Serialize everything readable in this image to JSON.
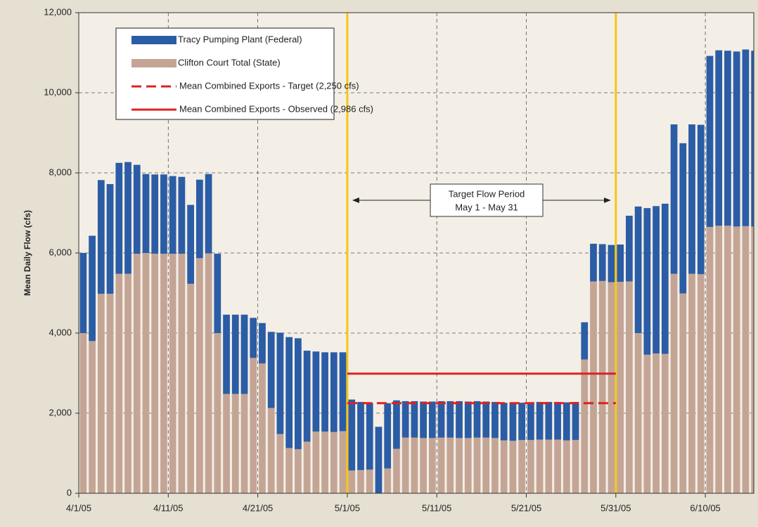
{
  "chart_data": {
    "type": "stacked_bar",
    "y_label": "Mean Daily Flow (cfs)",
    "ylim": [
      0,
      12000
    ],
    "yticks": [
      0,
      {
        "value": 2000,
        "label": "2,000"
      },
      {
        "value": 4000,
        "label": "4,000"
      },
      {
        "value": 6000,
        "label": "6,000"
      },
      {
        "value": 8000,
        "label": "8,000"
      },
      {
        "value": 10000,
        "label": "10,000"
      },
      {
        "value": 12000,
        "label": "12,000"
      }
    ],
    "grid": true,
    "categories": [
      "4/1/05",
      null,
      null,
      null,
      null,
      null,
      null,
      null,
      null,
      null,
      "4/11/05",
      null,
      null,
      null,
      null,
      null,
      null,
      null,
      null,
      null,
      "4/21/05",
      null,
      null,
      null,
      null,
      null,
      null,
      null,
      null,
      null,
      "5/1/05",
      null,
      null,
      null,
      null,
      null,
      null,
      null,
      null,
      null,
      "5/11/05",
      null,
      null,
      null,
      null,
      null,
      null,
      null,
      null,
      null,
      "5/21/05",
      null,
      null,
      null,
      null,
      null,
      null,
      null,
      null,
      null,
      "5/31/05",
      null,
      null,
      null,
      null,
      null,
      null,
      null,
      null,
      null,
      "6/10/05",
      null,
      null,
      null,
      null,
      null
    ],
    "series": [
      {
        "name": "Clifton Court Total (State)",
        "color": "#c4a595",
        "values": [
          4000,
          3800,
          4980,
          4980,
          5480,
          5480,
          5980,
          6000,
          5980,
          5980,
          5980,
          5980,
          5230,
          5870,
          5990,
          4000,
          2480,
          2480,
          2480,
          3380,
          3240,
          2130,
          1480,
          1130,
          1100,
          1290,
          1540,
          1540,
          1530,
          1550,
          570,
          580,
          590,
          0,
          620,
          1110,
          1390,
          1390,
          1380,
          1380,
          1390,
          1390,
          1380,
          1380,
          1390,
          1390,
          1380,
          1320,
          1310,
          1330,
          1330,
          1340,
          1340,
          1340,
          1320,
          1330,
          3340,
          5290,
          5300,
          5270,
          5280,
          5290,
          4000,
          3460,
          3490,
          3480,
          5480,
          4990,
          5480,
          5470,
          6650,
          6680,
          6680,
          6660,
          6670,
          6660
        ]
      },
      {
        "name": "Tracy Pumping Plant (Federal)",
        "color": "#2b5ca6",
        "values": [
          2000,
          2630,
          2840,
          2740,
          2770,
          2790,
          2220,
          1970,
          1980,
          1980,
          1940,
          1920,
          1970,
          1960,
          1980,
          1980,
          1980,
          1980,
          1980,
          1000,
          1010,
          1900,
          2530,
          2770,
          2770,
          2270,
          2000,
          1980,
          1990,
          1970,
          1770,
          1700,
          1670,
          1660,
          1630,
          1210,
          910,
          910,
          910,
          910,
          910,
          910,
          920,
          910,
          910,
          900,
          900,
          940,
          950,
          930,
          940,
          940,
          940,
          940,
          950,
          950,
          930,
          940,
          920,
          930,
          930,
          1640,
          3160,
          3660,
          3680,
          3750,
          3730,
          3750,
          3730,
          3730,
          4270,
          4380,
          4370,
          4370,
          4410,
          4390
        ]
      }
    ],
    "reference_lines": [
      {
        "name": "Mean Combined Exports - Target (2,250 cfs)",
        "value": 2250,
        "color": "#e02020",
        "style": "dashed"
      },
      {
        "name": "Mean Combined Exports - Observed (2,986 cfs)",
        "value": 2986,
        "color": "#e02020",
        "style": "solid"
      }
    ],
    "period": {
      "label": [
        "Target Flow Period",
        "May 1 - May 31"
      ],
      "start": "5/1/05",
      "end": "5/31/05",
      "color": "#f5c518"
    }
  }
}
